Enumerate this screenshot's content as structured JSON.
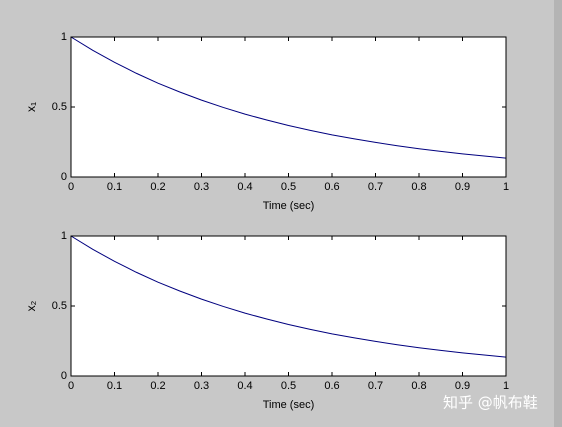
{
  "chart_data": [
    {
      "type": "line",
      "xlabel": "Time (sec)",
      "ylabel": "x₁",
      "x": [
        0,
        0.05,
        0.1,
        0.15,
        0.2,
        0.25,
        0.3,
        0.35,
        0.4,
        0.45,
        0.5,
        0.55,
        0.6,
        0.65,
        0.7,
        0.75,
        0.8,
        0.85,
        0.9,
        0.95,
        1
      ],
      "values": [
        1,
        0.905,
        0.819,
        0.741,
        0.67,
        0.607,
        0.549,
        0.497,
        0.449,
        0.407,
        0.368,
        0.333,
        0.301,
        0.273,
        0.247,
        0.223,
        0.202,
        0.183,
        0.165,
        0.15,
        0.135
      ],
      "color": "#00007f",
      "xlim": [
        0,
        1
      ],
      "xticks": [
        0,
        0.1,
        0.2,
        0.3,
        0.4,
        0.5,
        0.6,
        0.7,
        0.8,
        0.9,
        1
      ],
      "ylim": [
        0,
        1
      ],
      "yticks": [
        0,
        0.5,
        1
      ]
    },
    {
      "type": "line",
      "xlabel": "Time (sec)",
      "ylabel": "x₂",
      "x": [
        0,
        0.05,
        0.1,
        0.15,
        0.2,
        0.25,
        0.3,
        0.35,
        0.4,
        0.45,
        0.5,
        0.55,
        0.6,
        0.65,
        0.7,
        0.75,
        0.8,
        0.85,
        0.9,
        0.95,
        1
      ],
      "values": [
        1,
        0.905,
        0.819,
        0.741,
        0.67,
        0.607,
        0.549,
        0.497,
        0.449,
        0.407,
        0.368,
        0.333,
        0.301,
        0.273,
        0.247,
        0.223,
        0.202,
        0.183,
        0.165,
        0.15,
        0.135
      ],
      "color": "#00007f",
      "xlim": [
        0,
        1
      ],
      "xticks": [
        0,
        0.1,
        0.2,
        0.3,
        0.4,
        0.5,
        0.6,
        0.7,
        0.8,
        0.9,
        1
      ],
      "ylim": [
        0,
        1
      ],
      "yticks": [
        0,
        0.5,
        1
      ]
    }
  ],
  "watermark": "知乎 @帆布鞋"
}
